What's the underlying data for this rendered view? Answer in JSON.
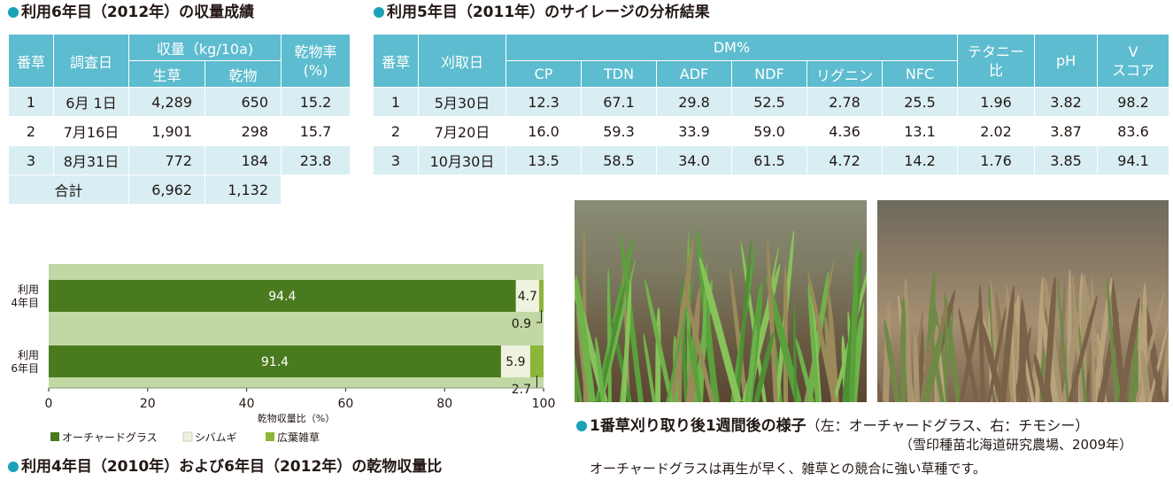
{
  "yield_section": {
    "title": "利用6年目（2012年）の収量成績",
    "headers": {
      "num": "番草",
      "date": "調査日",
      "yield": "収量（kg/10a)",
      "fresh": "生草",
      "dry": "乾物",
      "dmr_line1": "乾物率",
      "dmr_line2": "(%)"
    },
    "rows": [
      {
        "num": "1",
        "date": "6月  1日",
        "fresh": "4,289",
        "dry": "650",
        "rate": "15.2"
      },
      {
        "num": "2",
        "date": "7月16日",
        "fresh": "1,901",
        "dry": "298",
        "rate": "15.7"
      },
      {
        "num": "3",
        "date": "8月31日",
        "fresh": "772",
        "dry": "184",
        "rate": "23.8"
      }
    ],
    "total": {
      "label": "合計",
      "fresh": "6,962",
      "dry": "1,132",
      "rate": ""
    }
  },
  "silage_section": {
    "title": "利用5年目（2011年）のサイレージの分析結果",
    "headers": {
      "num": "番草",
      "date": "刈取日",
      "dm": "DM%",
      "cp": "CP",
      "tdn": "TDN",
      "adf": "ADF",
      "ndf": "NDF",
      "lignin": "リグニン",
      "nfc": "NFC",
      "tetany_line1": "テタニー",
      "tetany_line2": "比",
      "ph": "pH",
      "v_line1": "V",
      "v_line2": "スコア"
    },
    "rows": [
      {
        "num": "1",
        "date": "5月30日",
        "cp": "12.3",
        "tdn": "67.1",
        "adf": "29.8",
        "ndf": "52.5",
        "lignin": "2.78",
        "nfc": "25.5",
        "tetany": "1.96",
        "ph": "3.82",
        "v": "98.2"
      },
      {
        "num": "2",
        "date": "7月20日",
        "cp": "16.0",
        "tdn": "59.3",
        "adf": "33.9",
        "ndf": "59.0",
        "lignin": "4.36",
        "nfc": "13.1",
        "tetany": "2.02",
        "ph": "3.87",
        "v": "83.6"
      },
      {
        "num": "3",
        "date": "10月30日",
        "cp": "13.5",
        "tdn": "58.5",
        "adf": "34.0",
        "ndf": "61.5",
        "lignin": "4.72",
        "nfc": "14.2",
        "tetany": "1.76",
        "ph": "3.85",
        "v": "94.1"
      }
    ]
  },
  "chart_section": {
    "title": "利用4年目（2010年）および6年目（2012年）の乾物収量比"
  },
  "chart_data": {
    "type": "bar",
    "orientation": "horizontal",
    "stacked": true,
    "categories": [
      [
        "利用",
        "4年目"
      ],
      [
        "利用",
        "6年目"
      ]
    ],
    "series": [
      {
        "name": "オーチャードグラス",
        "values": [
          94.4,
          91.4
        ],
        "labels": [
          "94.4",
          "91.4"
        ],
        "color": "#4a7a1e"
      },
      {
        "name": "シバムギ",
        "values": [
          4.7,
          5.9
        ],
        "labels": [
          "4.7",
          "5.9"
        ],
        "color": "#eef2df"
      },
      {
        "name": "広葉雑草",
        "values": [
          0.9,
          2.7
        ],
        "labels": [
          "0.9",
          "2.7"
        ],
        "color": "#8cb53a"
      }
    ],
    "xlabel": "乾物収量比（%）",
    "xlim": [
      0,
      100
    ],
    "xticks": [
      "0",
      "20",
      "40",
      "60",
      "80",
      "100"
    ],
    "legend_position": "bottom-left",
    "plot_background": "#c2d8a4"
  },
  "photo_section": {
    "caption_bold": "1番草刈り取り後1週間後の様子",
    "caption_note": "（左：オーチャードグラス、右：チモシー）",
    "credit": "（雪印種苗北海道研究農場、2009年）",
    "description": "オーチャードグラスは再生が早く、雑草との競合に強い草種です。"
  },
  "colors": {
    "header_teal": "#5dbccf",
    "row_light": "#d8eef3",
    "bullet": "#1aa2b8"
  }
}
